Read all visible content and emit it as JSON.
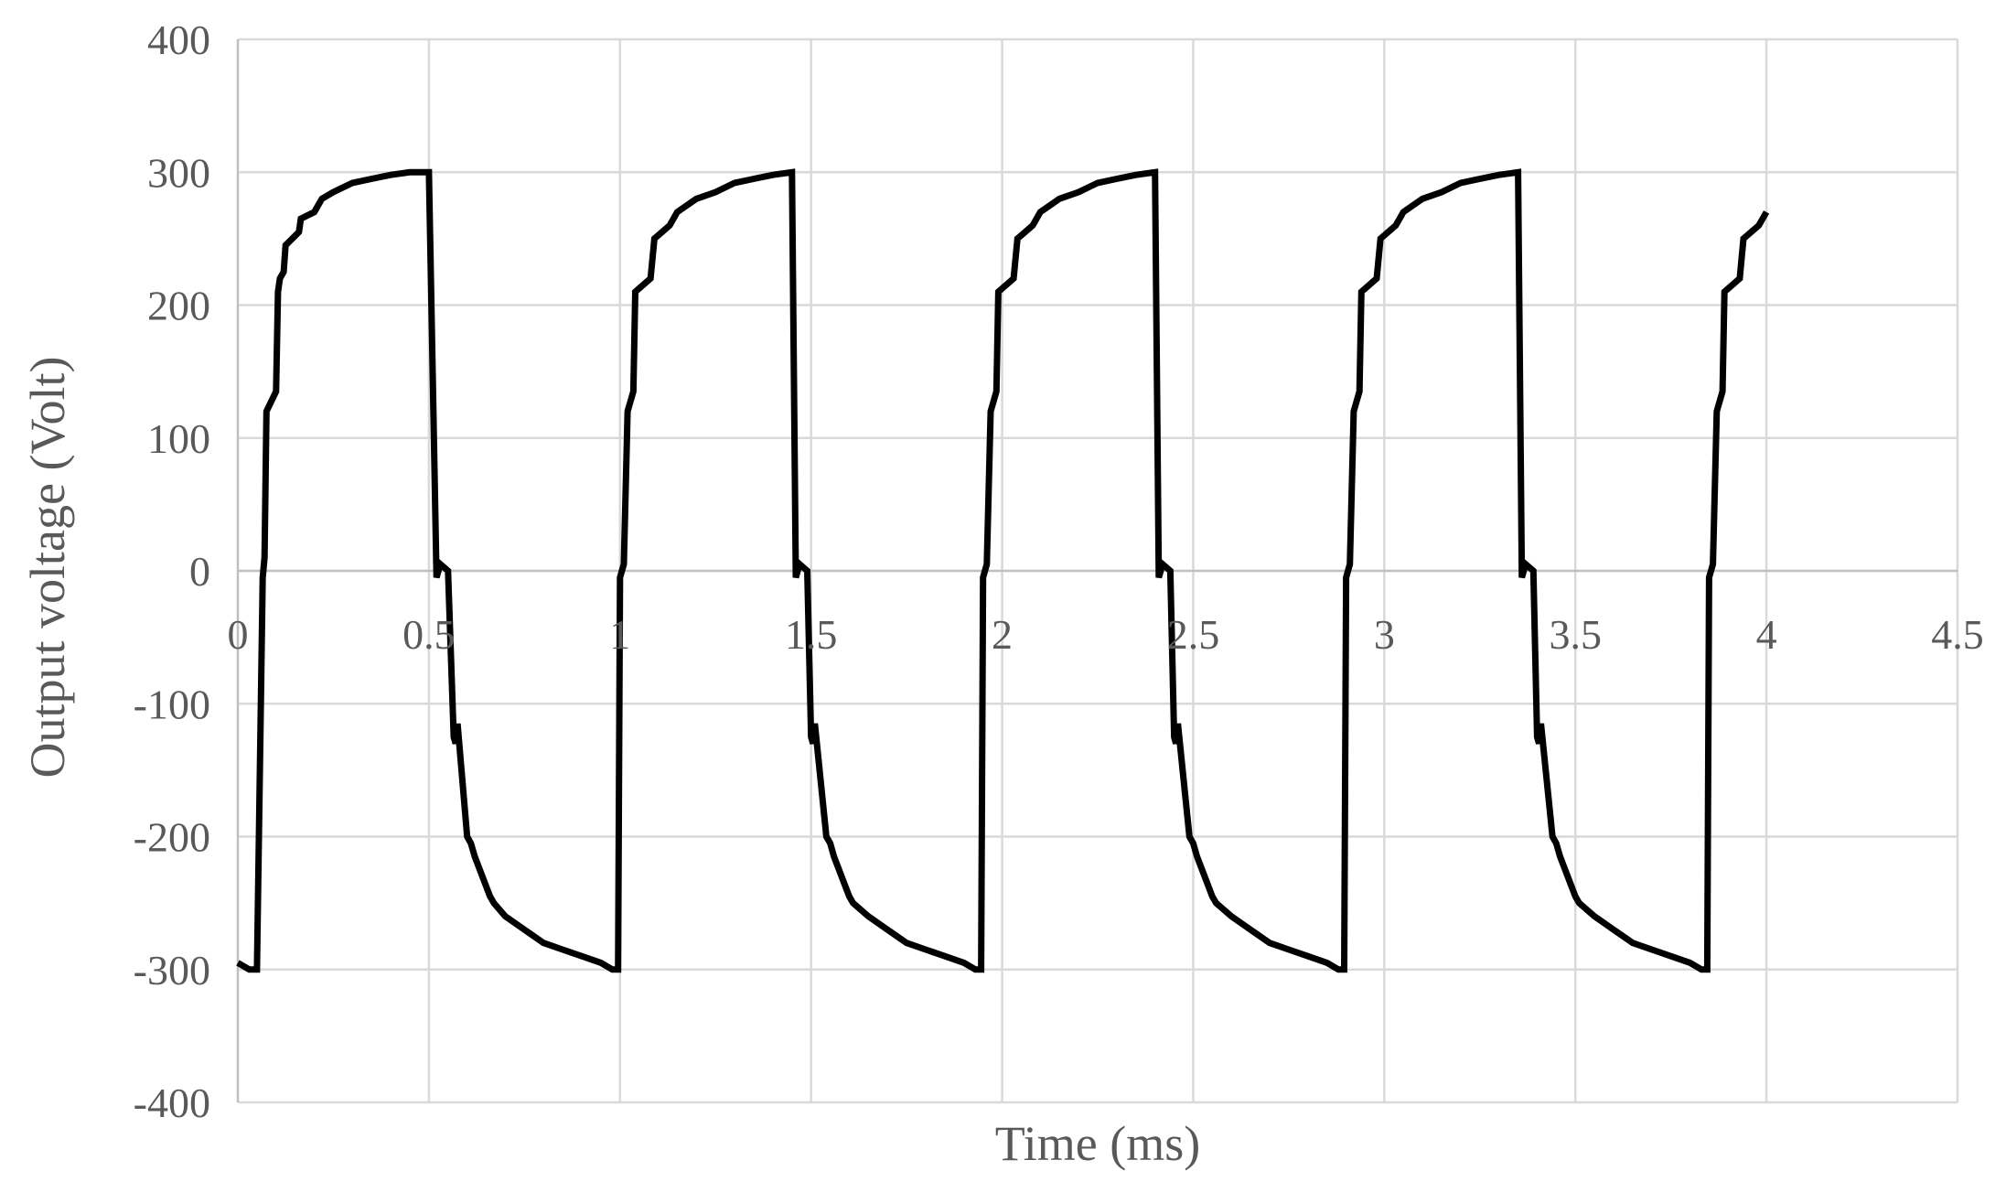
{
  "chart_data": {
    "type": "line",
    "xlabel": "Time (ms)",
    "ylabel": "Output voltage (Volt)",
    "xlim": [
      0,
      4.5
    ],
    "ylim": [
      -400,
      400
    ],
    "x_ticks": [
      "0",
      "0.5",
      "1",
      "1.5",
      "2",
      "2.5",
      "3",
      "3.5",
      "4",
      "4.5"
    ],
    "y_ticks": [
      "400",
      "300",
      "200",
      "100",
      "0",
      "-100",
      "-200",
      "-300",
      "-400"
    ],
    "grid": true,
    "legend": "none",
    "line_color": "#000000",
    "series": [
      {
        "x": [
          0,
          0.03,
          0.05,
          0.065,
          0.07,
          0.075,
          0.1,
          0.105,
          0.11,
          0.12,
          0.125,
          0.16,
          0.165,
          0.2,
          0.22,
          0.25,
          0.3,
          0.35,
          0.4,
          0.45,
          0.5,
          0.52,
          0.53,
          0.55,
          0.565,
          0.57,
          0.575,
          0.6,
          0.61,
          0.62,
          0.66,
          0.67,
          0.7,
          0.75,
          0.8,
          0.85,
          0.9,
          0.95,
          0.98,
          0.995,
          1.0,
          1.01,
          1.02,
          1.035,
          1.04,
          1.08,
          1.09,
          1.13,
          1.15,
          1.2,
          1.25,
          1.3,
          1.35,
          1.4,
          1.45,
          1.46,
          1.47,
          1.49,
          1.5,
          1.505,
          1.51,
          1.54,
          1.55,
          1.56,
          1.6,
          1.61,
          1.65,
          1.7,
          1.75,
          1.8,
          1.85,
          1.9,
          1.93,
          1.945,
          1.95,
          1.96,
          1.97,
          1.985,
          1.99,
          2.03,
          2.04,
          2.08,
          2.1,
          2.15,
          2.2,
          2.25,
          2.3,
          2.35,
          2.4,
          2.41,
          2.42,
          2.44,
          2.45,
          2.455,
          2.46,
          2.49,
          2.5,
          2.51,
          2.55,
          2.56,
          2.6,
          2.65,
          2.7,
          2.75,
          2.8,
          2.85,
          2.88,
          2.895,
          2.9,
          2.91,
          2.92,
          2.935,
          2.94,
          2.98,
          2.99,
          3.03,
          3.05,
          3.1,
          3.15,
          3.2,
          3.25,
          3.3,
          3.35,
          3.36,
          3.37,
          3.39,
          3.4,
          3.405,
          3.41,
          3.44,
          3.45,
          3.46,
          3.5,
          3.51,
          3.55,
          3.6,
          3.65,
          3.7,
          3.75,
          3.8,
          3.83,
          3.845,
          3.85,
          3.86,
          3.87,
          3.885,
          3.89,
          3.93,
          3.94,
          3.98,
          4.0
        ],
        "y": [
          -295,
          -300,
          -300,
          -5,
          10,
          120,
          135,
          210,
          220,
          225,
          245,
          255,
          265,
          270,
          280,
          285,
          292,
          295,
          298,
          300,
          300,
          -5,
          5,
          0,
          -125,
          -130,
          -115,
          -200,
          -205,
          -215,
          -245,
          -250,
          -260,
          -270,
          -280,
          -285,
          -290,
          -295,
          -300,
          -300,
          -5,
          5,
          120,
          135,
          210,
          220,
          250,
          260,
          270,
          280,
          285,
          292,
          295,
          298,
          300,
          -5,
          5,
          0,
          -125,
          -130,
          -115,
          -200,
          -205,
          -215,
          -245,
          -250,
          -260,
          -270,
          -280,
          -285,
          -290,
          -295,
          -300,
          -300,
          -5,
          5,
          120,
          135,
          210,
          220,
          250,
          260,
          270,
          280,
          285,
          292,
          295,
          298,
          300,
          -5,
          5,
          0,
          -125,
          -130,
          -115,
          -200,
          -205,
          -215,
          -245,
          -250,
          -260,
          -270,
          -280,
          -285,
          -290,
          -295,
          -300,
          -300,
          -5,
          5,
          120,
          135,
          210,
          220,
          250,
          260,
          270,
          280,
          285,
          292,
          295,
          298,
          300,
          -5,
          5,
          0,
          -125,
          -130,
          -115,
          -200,
          -205,
          -215,
          -245,
          -250,
          -260,
          -270,
          -280,
          -285,
          -290,
          -295,
          -300,
          -300,
          -5,
          5,
          120,
          135,
          210,
          220,
          250,
          260,
          270
        ]
      }
    ]
  }
}
